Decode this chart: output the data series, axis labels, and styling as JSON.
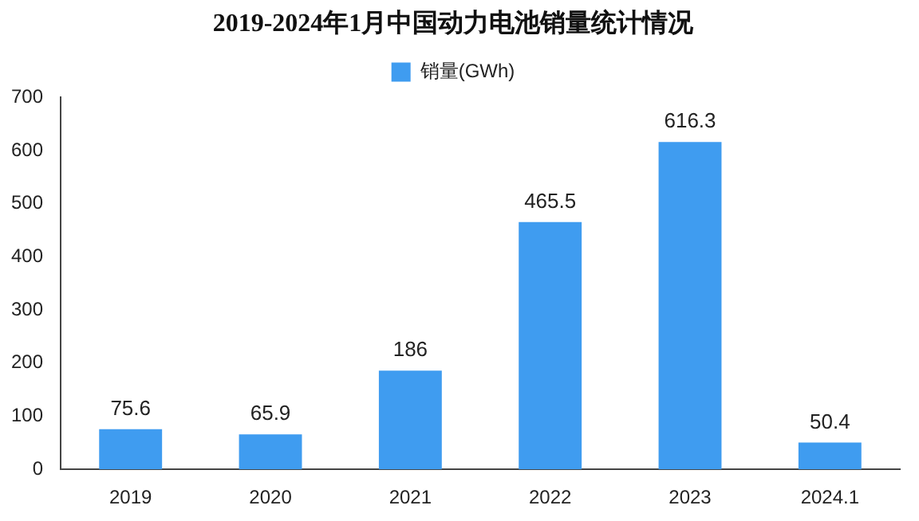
{
  "chart_data": {
    "type": "bar",
    "title": "2019-2024年1月中国动力电池销量统计情况",
    "categories": [
      "2019",
      "2020",
      "2021",
      "2022",
      "2023",
      "2024.1"
    ],
    "series": [
      {
        "name": "销量(GWh)",
        "color": "#3f9cf0",
        "values": [
          75.6,
          65.9,
          186,
          465.5,
          616.3,
          50.4
        ]
      }
    ],
    "ylim": [
      0,
      700
    ],
    "yticks": [
      0,
      100,
      200,
      300,
      400,
      500,
      600,
      700
    ],
    "grid": false,
    "legend": "top",
    "data_labels": true
  }
}
